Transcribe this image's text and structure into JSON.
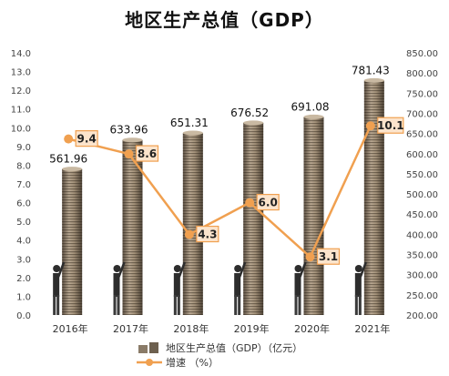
{
  "chart_data": {
    "type": "bar+line",
    "title": "地区生产总值（GDP）",
    "categories": [
      "2016年",
      "2017年",
      "2018年",
      "2019年",
      "2020年",
      "2021年"
    ],
    "series": [
      {
        "name": "地区生产总值（GDP）（亿元）",
        "type": "bar",
        "axis": "right",
        "values": [
          561.96,
          633.96,
          651.31,
          676.52,
          691.08,
          781.43
        ],
        "data_labels": [
          "561.96",
          "633.96",
          "651.31",
          "676.52",
          "691.08",
          "781.43"
        ]
      },
      {
        "name": "增速 （%）",
        "type": "line",
        "axis": "left",
        "values": [
          9.4,
          8.6,
          4.3,
          6.0,
          3.1,
          10.1
        ],
        "data_labels": [
          "9.4",
          "8.6",
          "4.3",
          "6.0",
          "3.1",
          "10.1"
        ]
      }
    ],
    "left_axis": {
      "ylim": [
        0,
        14
      ],
      "ticks": [
        "0.0",
        "1.0",
        "2.0",
        "3.0",
        "4.0",
        "5.0",
        "6.0",
        "7.0",
        "8.0",
        "9.0",
        "10.0",
        "11.0",
        "12.0",
        "13.0",
        "14.0"
      ]
    },
    "right_axis": {
      "ylim": [
        200,
        850
      ],
      "ticks": [
        "200.00",
        "250.00",
        "300.00",
        "350.00",
        "400.00",
        "450.00",
        "500.00",
        "550.00",
        "600.00",
        "650.00",
        "700.00",
        "750.00",
        "800.00",
        "850.00"
      ]
    },
    "grid": false,
    "legend_position": "bottom",
    "colors": {
      "line": "#F0A050",
      "label_bg": "#FCE4CC",
      "label_border": "#F0A050",
      "coin": "#9C8C78",
      "coin_dark": "#5E5245"
    }
  }
}
